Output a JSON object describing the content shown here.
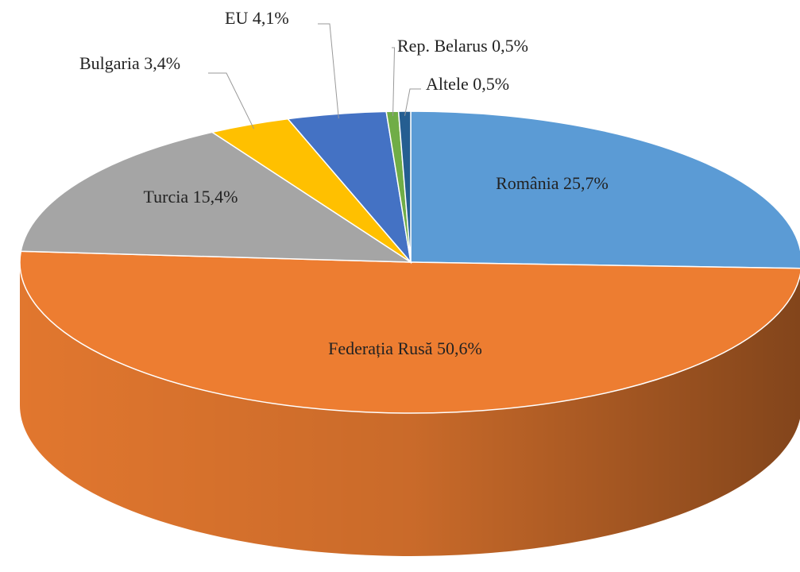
{
  "chart_data": {
    "type": "pie",
    "categories": [
      "România",
      "Federația Rusă",
      "Turcia",
      "Bulgaria",
      "EU",
      "Rep. Belarus",
      "Altele"
    ],
    "values": [
      25.7,
      50.6,
      15.4,
      3.4,
      4.1,
      0.5,
      0.5
    ],
    "value_labels": [
      "25,7%",
      "50,6%",
      "15,4%",
      "3,4%",
      "4,1%",
      "0,5%",
      "0,5%"
    ],
    "colors": [
      "#5b9bd5",
      "#ed7d31",
      "#a5a5a5",
      "#ffc000",
      "#4472c4",
      "#70ad47",
      "#255e91"
    ]
  }
}
